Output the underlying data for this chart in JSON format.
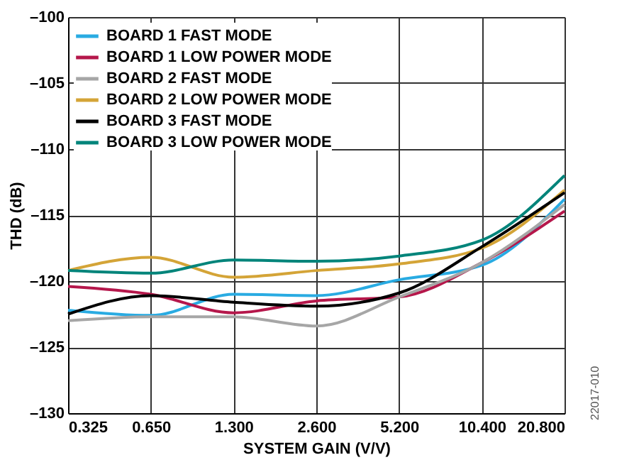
{
  "chart_data": {
    "type": "line",
    "xlabel": "SYSTEM GAIN (V/V)",
    "ylabel": "THD (dB)",
    "categories": [
      "0.325",
      "0.650",
      "1.300",
      "2.600",
      "5.200",
      "10.400",
      "20.800"
    ],
    "series": [
      {
        "name": "BOARD 1 FAST MODE",
        "color": "#29abe2",
        "values": [
          -122.2,
          -122.6,
          -121.0,
          -121.1,
          -119.9,
          -118.8,
          -113.8
        ]
      },
      {
        "name": "BOARD 1 LOW POWER MODE",
        "color": "#b5174b",
        "values": [
          -120.4,
          -121.0,
          -122.4,
          -121.5,
          -121.2,
          -118.6,
          -114.7
        ]
      },
      {
        "name": "BOARD 2 FAST MODE",
        "color": "#a6a6a6",
        "values": [
          -123.0,
          -122.7,
          -122.7,
          -123.4,
          -121.2,
          -118.6,
          -114.2
        ]
      },
      {
        "name": "BOARD 2 LOW POWER MODE",
        "color": "#d4a437",
        "values": [
          -119.2,
          -118.2,
          -119.7,
          -119.2,
          -118.7,
          -117.5,
          -113.1
        ]
      },
      {
        "name": "BOARD 3 FAST MODE",
        "color": "#000000",
        "values": [
          -122.5,
          -121.1,
          -121.6,
          -121.9,
          -120.9,
          -117.4,
          -113.3
        ]
      },
      {
        "name": "BOARD 3 LOW POWER MODE",
        "color": "#00847a",
        "values": [
          -119.2,
          -119.4,
          -118.4,
          -118.5,
          -118.1,
          -116.9,
          -112.0
        ]
      }
    ],
    "ylim": [
      -130,
      -100
    ],
    "yticks": [
      {
        "value": -130,
        "label": "–130"
      },
      {
        "value": -125,
        "label": "–125"
      },
      {
        "value": -120,
        "label": "–120"
      },
      {
        "value": -115,
        "label": "–115"
      },
      {
        "value": -110,
        "label": "–110"
      },
      {
        "value": -105,
        "label": "–105"
      },
      {
        "value": -100,
        "label": "–100"
      }
    ],
    "grid": true,
    "legend": "top left",
    "line_style": "solid",
    "annotations": [
      "22017-010"
    ]
  }
}
